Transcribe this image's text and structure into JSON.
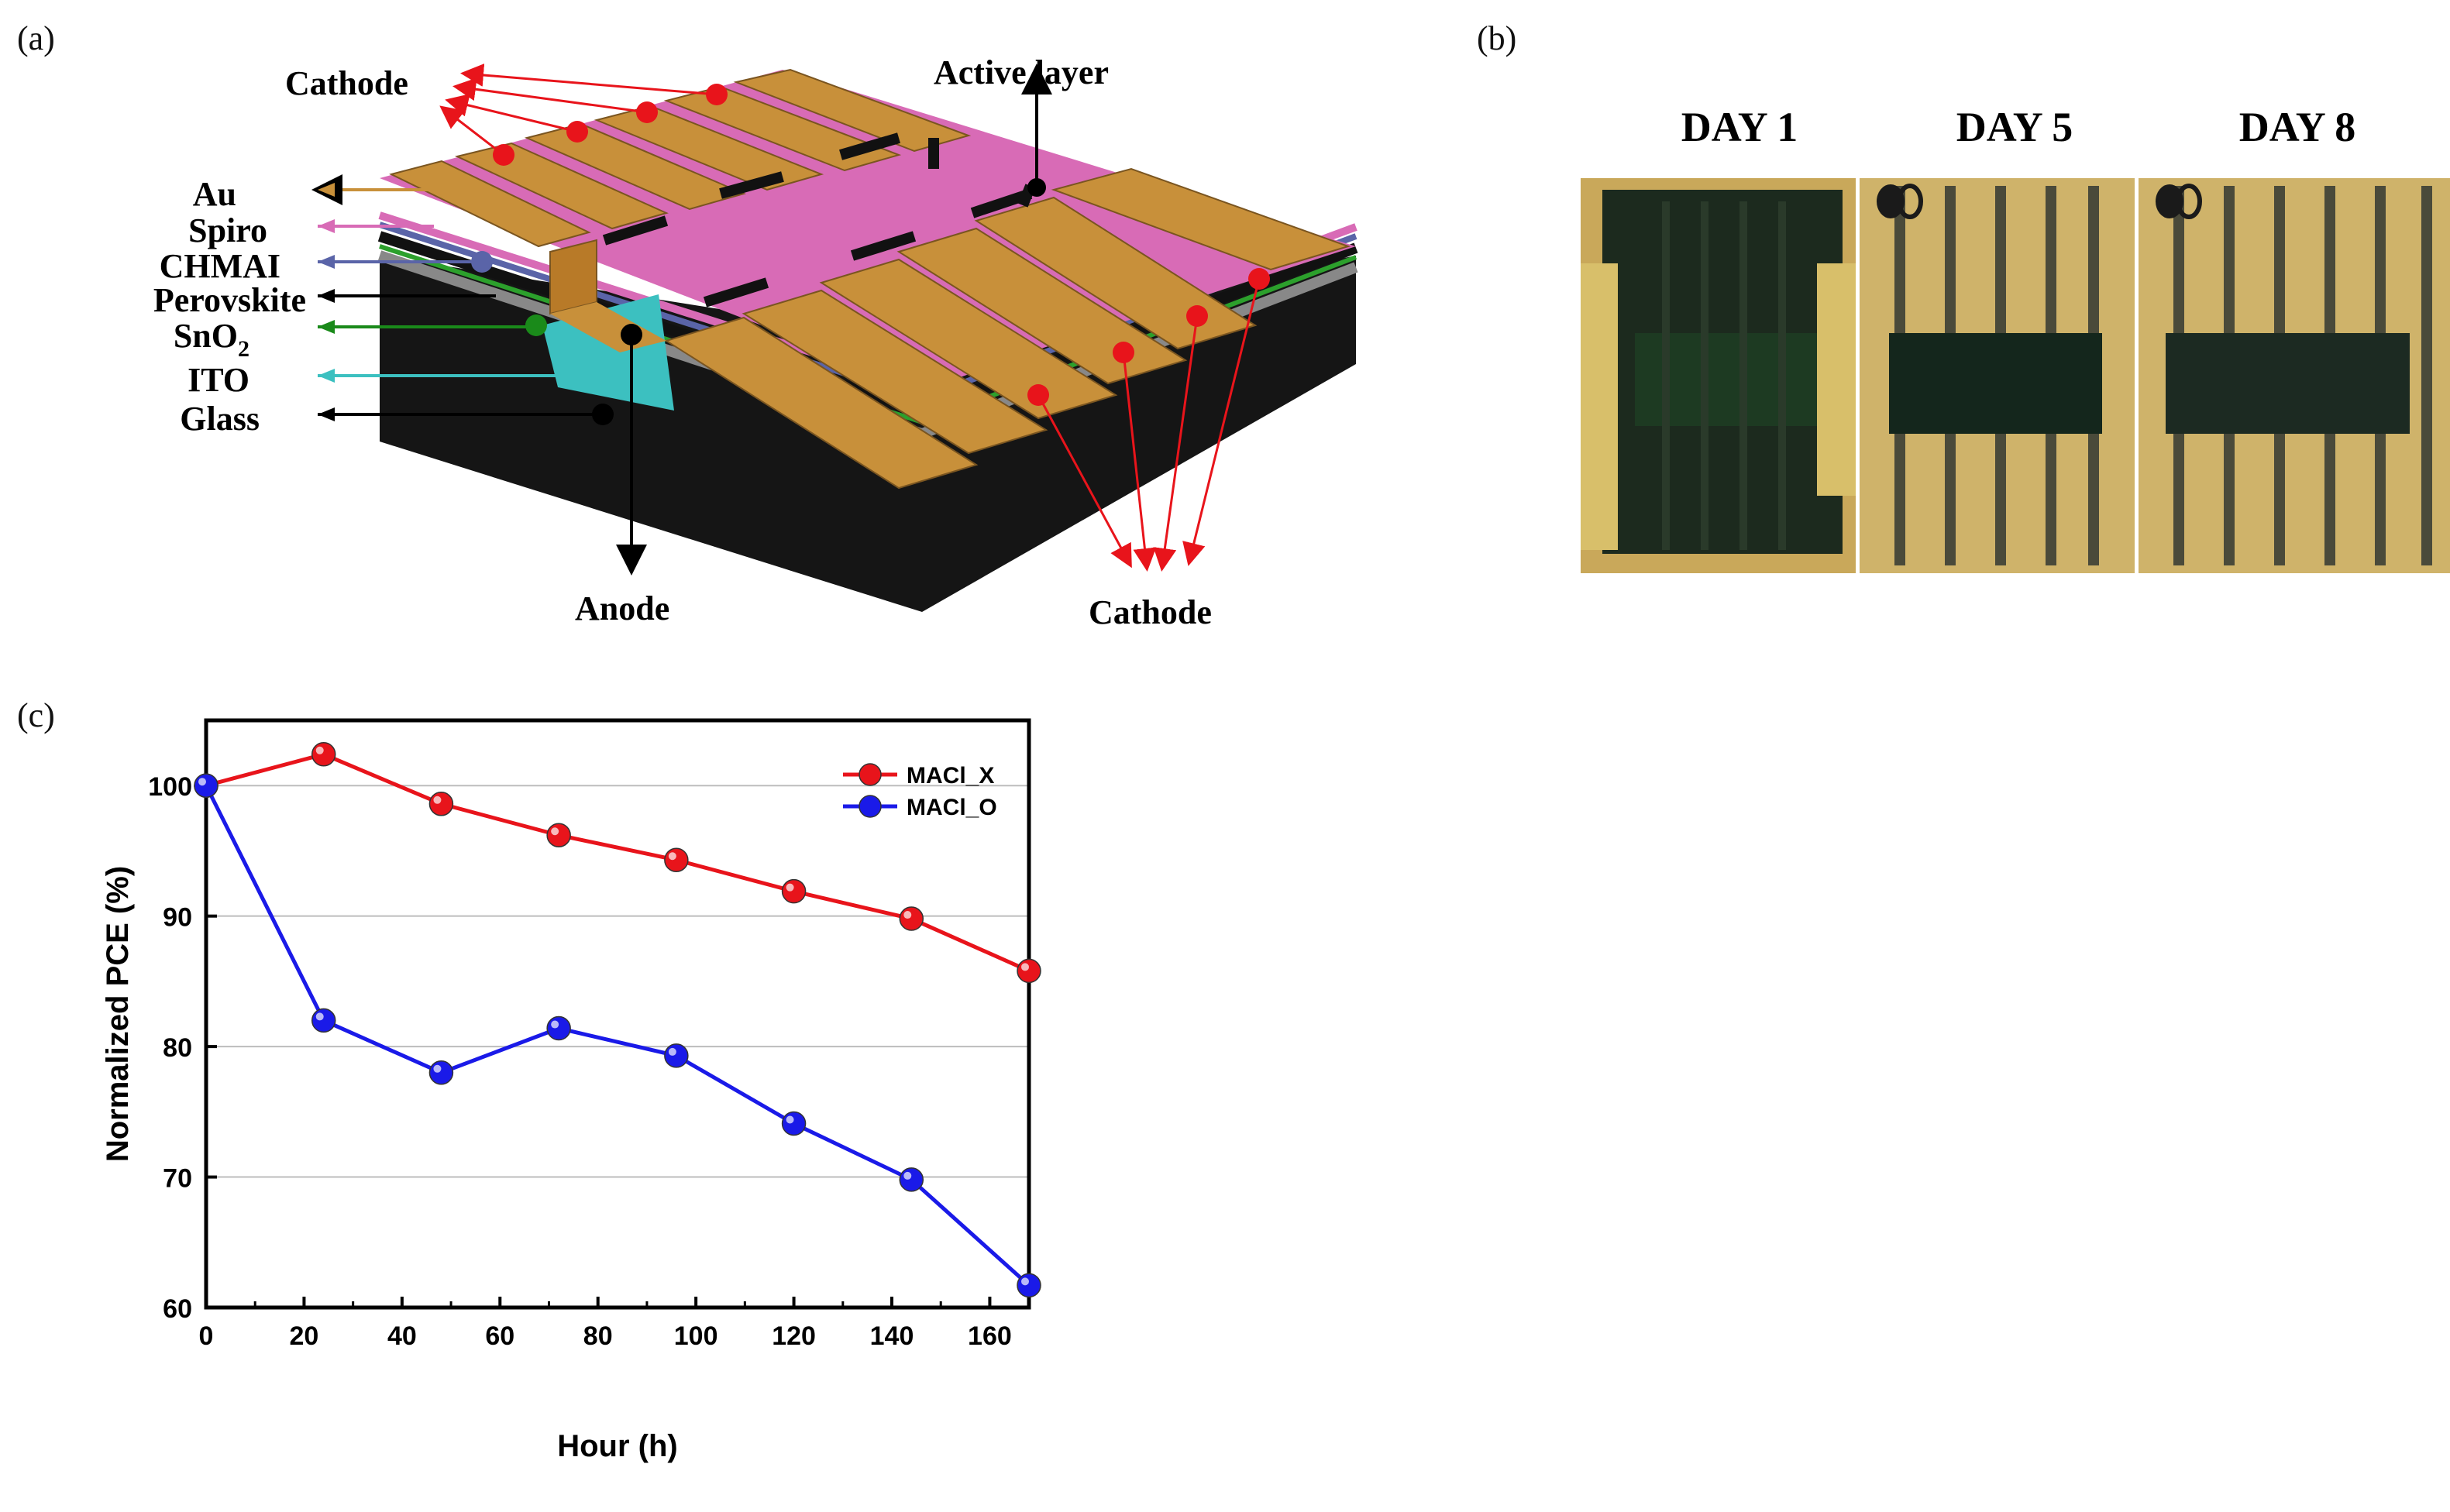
{
  "panels": {
    "a": {
      "label": "(a)",
      "layers": [
        {
          "name": "Au",
          "color": "#c8903a"
        },
        {
          "name": "Spiro",
          "color": "#d86bb6"
        },
        {
          "name": "CHMAI",
          "color": "#5a64a8"
        },
        {
          "name": "Perovskite",
          "color": "#111111"
        },
        {
          "name": "SnO",
          "sub": "2",
          "color": "#1a8a1a"
        },
        {
          "name": "ITO",
          "color": "#3cc0c0"
        },
        {
          "name": "Glass",
          "color": "#111111"
        }
      ],
      "callouts": {
        "cathode_top": "Cathode",
        "active_layer": "Active layer",
        "anode": "Anode",
        "cathode_bottom": "Cathode"
      }
    },
    "b": {
      "label": "(b)",
      "days": [
        "DAY 1",
        "DAY 5",
        "DAY 8"
      ]
    },
    "c": {
      "label": "(c)"
    }
  },
  "chart_data": {
    "type": "line",
    "xlabel": "Hour (h)",
    "ylabel": "Normalized PCE (%)",
    "xlim": [
      0,
      168
    ],
    "ylim": [
      60,
      105
    ],
    "xticks": [
      0,
      20,
      40,
      60,
      80,
      100,
      120,
      140,
      160
    ],
    "yticks": [
      60,
      70,
      80,
      90,
      100
    ],
    "grid": "horizontal",
    "legend_position": "top-right",
    "x": [
      0,
      24,
      48,
      72,
      96,
      120,
      144,
      168
    ],
    "series": [
      {
        "name": "MACl_X",
        "color": "#e8141b",
        "values": [
          100,
          102.4,
          98.6,
          96.2,
          94.3,
          91.9,
          89.8,
          85.8
        ]
      },
      {
        "name": "MACl_O",
        "color": "#1a1ae8",
        "values": [
          100,
          82.0,
          78.0,
          81.4,
          79.3,
          74.1,
          69.8,
          61.7
        ]
      }
    ]
  }
}
